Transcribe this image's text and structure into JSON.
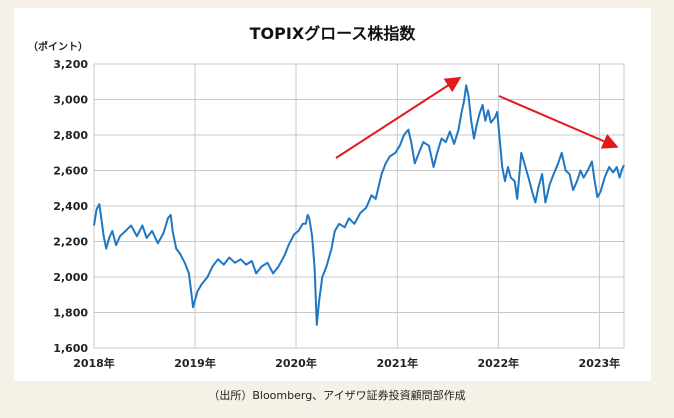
{
  "chart_data": {
    "type": "line",
    "title": "TOPIXグロース株指数",
    "unit_label": "（ポイント）",
    "ylim": [
      1600,
      3200
    ],
    "yticks": [
      1600,
      1800,
      2000,
      2200,
      2400,
      2600,
      2800,
      3000,
      3200
    ],
    "ytick_labels": [
      "1,600",
      "1,800",
      "2,000",
      "2,200",
      "2,400",
      "2,600",
      "2,800",
      "3,000",
      "3,200"
    ],
    "xlim": [
      "2018-01-01",
      "2023-03-31"
    ],
    "xtick_labels": [
      "2018年",
      "2019年",
      "2020年",
      "2021年",
      "2022年",
      "2023年"
    ],
    "xtick_dates": [
      "2018-01-01",
      "2019-01-01",
      "2020-01-01",
      "2021-01-01",
      "2022-01-01",
      "2023-01-01"
    ],
    "grid": true,
    "line_color": "#1f77c4",
    "arrow_color": "#e31a1c",
    "series": [
      {
        "points": [
          [
            "2018-01-01",
            2290
          ],
          [
            "2018-01-10",
            2380
          ],
          [
            "2018-01-20",
            2410
          ],
          [
            "2018-01-25",
            2360
          ],
          [
            "2018-02-05",
            2230
          ],
          [
            "2018-02-14",
            2160
          ],
          [
            "2018-02-25",
            2220
          ],
          [
            "2018-03-08",
            2260
          ],
          [
            "2018-03-22",
            2180
          ],
          [
            "2018-04-05",
            2230
          ],
          [
            "2018-04-25",
            2260
          ],
          [
            "2018-05-15",
            2290
          ],
          [
            "2018-06-05",
            2230
          ],
          [
            "2018-06-25",
            2290
          ],
          [
            "2018-07-10",
            2220
          ],
          [
            "2018-07-30",
            2260
          ],
          [
            "2018-08-20",
            2190
          ],
          [
            "2018-09-10",
            2250
          ],
          [
            "2018-09-25",
            2330
          ],
          [
            "2018-10-05",
            2350
          ],
          [
            "2018-10-12",
            2260
          ],
          [
            "2018-10-25",
            2160
          ],
          [
            "2018-11-08",
            2130
          ],
          [
            "2018-11-25",
            2080
          ],
          [
            "2018-12-10",
            2020
          ],
          [
            "2018-12-25",
            1830
          ],
          [
            "2019-01-10",
            1920
          ],
          [
            "2019-01-25",
            1960
          ],
          [
            "2019-02-15",
            2000
          ],
          [
            "2019-03-05",
            2060
          ],
          [
            "2019-03-25",
            2100
          ],
          [
            "2019-04-15",
            2070
          ],
          [
            "2019-05-05",
            2110
          ],
          [
            "2019-05-25",
            2080
          ],
          [
            "2019-06-15",
            2100
          ],
          [
            "2019-07-05",
            2070
          ],
          [
            "2019-07-25",
            2090
          ],
          [
            "2019-08-10",
            2020
          ],
          [
            "2019-08-30",
            2060
          ],
          [
            "2019-09-20",
            2080
          ],
          [
            "2019-10-10",
            2020
          ],
          [
            "2019-10-30",
            2060
          ],
          [
            "2019-11-20",
            2120
          ],
          [
            "2019-12-05",
            2180
          ],
          [
            "2019-12-25",
            2240
          ],
          [
            "2020-01-10",
            2260
          ],
          [
            "2020-01-25",
            2300
          ],
          [
            "2020-02-05",
            2300
          ],
          [
            "2020-02-12",
            2350
          ],
          [
            "2020-02-18",
            2330
          ],
          [
            "2020-02-28",
            2230
          ],
          [
            "2020-03-08",
            2050
          ],
          [
            "2020-03-16",
            1730
          ],
          [
            "2020-03-24",
            1860
          ],
          [
            "2020-04-05",
            2000
          ],
          [
            "2020-04-20",
            2060
          ],
          [
            "2020-05-08",
            2160
          ],
          [
            "2020-05-20",
            2260
          ],
          [
            "2020-06-05",
            2300
          ],
          [
            "2020-06-25",
            2280
          ],
          [
            "2020-07-10",
            2330
          ],
          [
            "2020-07-30",
            2300
          ],
          [
            "2020-08-20",
            2360
          ],
          [
            "2020-09-10",
            2390
          ],
          [
            "2020-09-30",
            2460
          ],
          [
            "2020-10-15",
            2440
          ],
          [
            "2020-11-05",
            2580
          ],
          [
            "2020-11-20",
            2640
          ],
          [
            "2020-12-05",
            2680
          ],
          [
            "2020-12-25",
            2700
          ],
          [
            "2021-01-10",
            2740
          ],
          [
            "2021-01-25",
            2800
          ],
          [
            "2021-02-10",
            2830
          ],
          [
            "2021-02-20",
            2760
          ],
          [
            "2021-03-05",
            2640
          ],
          [
            "2021-03-20",
            2700
          ],
          [
            "2021-04-05",
            2760
          ],
          [
            "2021-04-25",
            2740
          ],
          [
            "2021-05-12",
            2620
          ],
          [
            "2021-05-25",
            2700
          ],
          [
            "2021-06-10",
            2780
          ],
          [
            "2021-06-25",
            2760
          ],
          [
            "2021-07-10",
            2820
          ],
          [
            "2021-07-25",
            2750
          ],
          [
            "2021-08-10",
            2830
          ],
          [
            "2021-08-20",
            2920
          ],
          [
            "2021-08-30",
            2990
          ],
          [
            "2021-09-07",
            3080
          ],
          [
            "2021-09-15",
            3020
          ],
          [
            "2021-09-25",
            2880
          ],
          [
            "2021-10-05",
            2780
          ],
          [
            "2021-10-15",
            2860
          ],
          [
            "2021-10-25",
            2920
          ],
          [
            "2021-11-05",
            2970
          ],
          [
            "2021-11-15",
            2880
          ],
          [
            "2021-11-25",
            2940
          ],
          [
            "2021-12-05",
            2870
          ],
          [
            "2021-12-20",
            2900
          ],
          [
            "2021-12-28",
            2930
          ],
          [
            "2022-01-05",
            2790
          ],
          [
            "2022-01-15",
            2620
          ],
          [
            "2022-01-25",
            2540
          ],
          [
            "2022-02-05",
            2620
          ],
          [
            "2022-02-15",
            2560
          ],
          [
            "2022-03-01",
            2540
          ],
          [
            "2022-03-10",
            2440
          ],
          [
            "2022-03-25",
            2700
          ],
          [
            "2022-04-05",
            2640
          ],
          [
            "2022-04-20",
            2560
          ],
          [
            "2022-05-05",
            2470
          ],
          [
            "2022-05-15",
            2420
          ],
          [
            "2022-05-25",
            2500
          ],
          [
            "2022-06-08",
            2580
          ],
          [
            "2022-06-20",
            2420
          ],
          [
            "2022-07-05",
            2520
          ],
          [
            "2022-07-20",
            2580
          ],
          [
            "2022-08-05",
            2640
          ],
          [
            "2022-08-18",
            2700
          ],
          [
            "2022-09-01",
            2600
          ],
          [
            "2022-09-15",
            2580
          ],
          [
            "2022-09-28",
            2490
          ],
          [
            "2022-10-12",
            2540
          ],
          [
            "2022-10-25",
            2600
          ],
          [
            "2022-11-05",
            2560
          ],
          [
            "2022-11-20",
            2600
          ],
          [
            "2022-12-05",
            2650
          ],
          [
            "2022-12-15",
            2540
          ],
          [
            "2022-12-25",
            2450
          ],
          [
            "2023-01-05",
            2480
          ],
          [
            "2023-01-20",
            2560
          ],
          [
            "2023-02-05",
            2620
          ],
          [
            "2023-02-20",
            2590
          ],
          [
            "2023-03-05",
            2620
          ],
          [
            "2023-03-15",
            2560
          ],
          [
            "2023-03-25",
            2610
          ],
          [
            "2023-03-31",
            2630
          ]
        ]
      }
    ]
  },
  "source_note": "（出所）Bloomberg、アイザワ証券投資顧問部作成"
}
